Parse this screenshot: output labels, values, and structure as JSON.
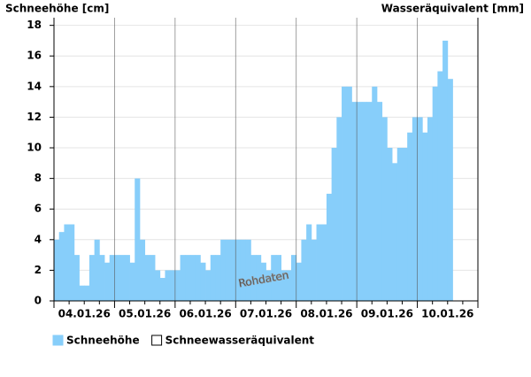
{
  "chart_data": {
    "type": "bar",
    "y_label": "Schneehöhe [cm]",
    "y2_label": "Wasseräquivalent [mm]",
    "watermark": "Rohdaten",
    "categories": [
      null,
      null,
      null,
      null,
      null,
      null,
      "04.01.26",
      null,
      null,
      null,
      null,
      null,
      null,
      null,
      null,
      null,
      null,
      null,
      "05.01.26",
      null,
      null,
      null,
      null,
      null,
      null,
      null,
      null,
      null,
      null,
      null,
      "06.01.26",
      null,
      null,
      null,
      null,
      null,
      null,
      null,
      null,
      null,
      null,
      null,
      "07.01.26",
      null,
      null,
      null,
      null,
      null,
      null,
      null,
      null,
      null,
      null,
      null,
      "08.01.26",
      null,
      null,
      null,
      null,
      null,
      null,
      null,
      null,
      null,
      null,
      null,
      "09.01.26",
      null,
      null,
      null,
      null,
      null,
      null,
      null,
      null,
      null,
      null,
      null,
      "10.01.26",
      null,
      null,
      null,
      null,
      null
    ],
    "series": [
      {
        "name": "Schneehöhe",
        "color": "#87cefa",
        "values": [
          4,
          4.5,
          5,
          5,
          3,
          1,
          1,
          3,
          4,
          3,
          2.5,
          3,
          3,
          3,
          3,
          2.5,
          8,
          4,
          3,
          3,
          2,
          1.5,
          2,
          2,
          2,
          3,
          3,
          3,
          3,
          2.5,
          2,
          3,
          3,
          4,
          4,
          4,
          4,
          4,
          4,
          3,
          3,
          2.5,
          2,
          3,
          3,
          2,
          2,
          3,
          2.5,
          4,
          5,
          4,
          5,
          5,
          7,
          10,
          12,
          14,
          14,
          13,
          13,
          13,
          13,
          14,
          13,
          12,
          10,
          9,
          10,
          10,
          11,
          12,
          12,
          11,
          12,
          14,
          15,
          17,
          14.5,
          null,
          null,
          null,
          null,
          null
        ]
      },
      {
        "name": "Schneewasseräquivalent",
        "color": "#ffffff",
        "values": [
          null,
          null,
          null,
          null,
          null,
          null,
          null,
          null,
          null,
          null,
          null,
          null,
          null,
          null,
          null,
          null,
          null,
          null,
          null,
          null,
          null,
          null,
          null,
          null,
          null,
          null,
          null,
          null,
          null,
          null,
          null,
          null,
          null,
          null,
          null,
          null,
          null,
          null,
          null,
          null,
          null,
          null,
          null,
          null,
          null,
          null,
          null,
          null,
          null,
          null,
          null,
          null,
          null,
          null,
          null,
          null,
          null,
          null,
          null,
          null,
          null,
          null,
          null,
          null,
          null,
          null,
          null,
          null,
          null,
          null,
          null,
          null,
          null,
          null,
          null,
          null,
          null,
          null,
          null,
          null,
          null,
          null,
          null,
          null
        ]
      }
    ],
    "ylim": [
      0,
      18.5
    ],
    "yticks": [
      0,
      2,
      4,
      6,
      8,
      10,
      12,
      14,
      16,
      18
    ],
    "grid": true
  }
}
